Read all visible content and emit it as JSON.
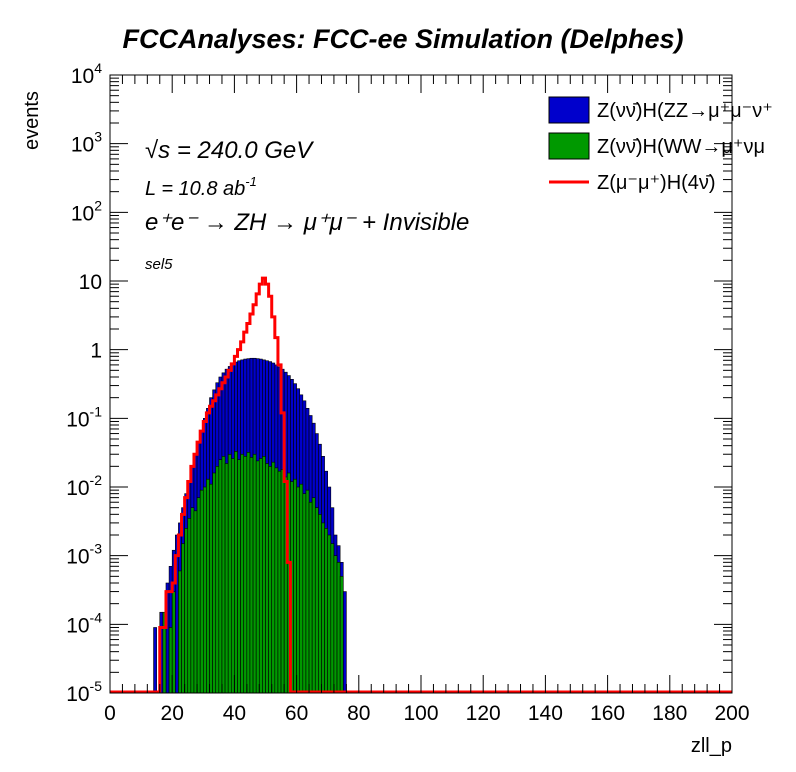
{
  "chart_data": {
    "type": "histogram",
    "title": "FCCAnalyses: FCC-ee Simulation (Delphes)",
    "xlabel": "zll_p",
    "ylabel": "events",
    "xlim": [
      0,
      200
    ],
    "ylim": [
      1e-05,
      10000
    ],
    "ylog": true,
    "x_ticks": [
      "0",
      "20",
      "40",
      "60",
      "80",
      "100",
      "120",
      "140",
      "160",
      "180",
      "200"
    ],
    "y_ticks": [
      {
        "base": "10",
        "exp": "4",
        "value": 10000
      },
      {
        "base": "10",
        "exp": "3",
        "value": 1000
      },
      {
        "base": "10",
        "exp": "2",
        "value": 100
      },
      {
        "base": "10",
        "exp": "",
        "value": 10
      },
      {
        "base": "1",
        "exp": "",
        "value": 1
      },
      {
        "base": "10",
        "exp": "-1",
        "value": 0.1
      },
      {
        "base": "10",
        "exp": "-2",
        "value": 0.01
      },
      {
        "base": "10",
        "exp": "-3",
        "value": 0.001
      },
      {
        "base": "10",
        "exp": "-4",
        "value": 0.0001
      },
      {
        "base": "10",
        "exp": "-5",
        "value": 1e-05
      }
    ],
    "annotations": {
      "energy": "√s = 240.0 GeV",
      "lumi_text": "L = 10.8 ab",
      "lumi_exp": "-1",
      "process": "e⁺e⁻ → ZH → μ⁺μ⁻ + Invisible",
      "selection": "sel5"
    },
    "legend_position": "top-right",
    "grid": false,
    "bin_width": 1,
    "series": [
      {
        "name": "Z(νν̄)H(ZZ→μ⁺μ⁻ν⁺",
        "style": "filled",
        "color": "#0000cc",
        "x_start": 14,
        "values": [
          9e-05,
          0,
          0.00015,
          9e-05,
          0.0004,
          0.0007,
          0.0012,
          0.002,
          0.003,
          0.005,
          0.008,
          0.012,
          0.02,
          0.03,
          0.045,
          0.065,
          0.1,
          0.14,
          0.2,
          0.26,
          0.33,
          0.4,
          0.46,
          0.52,
          0.57,
          0.62,
          0.66,
          0.69,
          0.71,
          0.73,
          0.74,
          0.75,
          0.75,
          0.74,
          0.73,
          0.71,
          0.69,
          0.67,
          0.64,
          0.6,
          0.56,
          0.52,
          0.47,
          0.42,
          0.37,
          0.32,
          0.27,
          0.22,
          0.18,
          0.14,
          0.11,
          0.085,
          0.06,
          0.042,
          0.028,
          0.017,
          0.01,
          0.005,
          0.002,
          0.0014,
          0.0008,
          0.0003
        ]
      },
      {
        "name": "Z(νν̄)H(WW→μ⁺νμ",
        "style": "filled",
        "color": "#009900",
        "x_start": 17,
        "values": [
          0.00015,
          0,
          9e-05,
          0.0003,
          0,
          0.0006,
          0.0015,
          0.0025,
          0.0035,
          0.005,
          0.0045,
          0.007,
          0.009,
          0.01,
          0.013,
          0.011,
          0.016,
          0.02,
          0.025,
          0.028,
          0.022,
          0.03,
          0.026,
          0.033,
          0.025,
          0.03,
          0.028,
          0.032,
          0.027,
          0.03,
          0.024,
          0.026,
          0.028,
          0.022,
          0.02,
          0.023,
          0.019,
          0.017,
          0.018,
          0.014,
          0.016,
          0.012,
          0.013,
          0.01,
          0.011,
          0.008,
          0.009,
          0.006,
          0.007,
          0.005,
          0.004,
          0.003,
          0.0025,
          0.002,
          0.0015,
          0.001,
          0.0008,
          0.0005
        ]
      },
      {
        "name": "Z(μ⁻μ⁺)H(4ν̄)",
        "style": "line",
        "color": "#ff0000",
        "x_start": 16,
        "values": [
          9e-05,
          9e-05,
          0.0003,
          0.0003,
          0.0004,
          0.001,
          0.002,
          0.004,
          0.007,
          0.012,
          0.02,
          0.03,
          0.045,
          0.065,
          0.09,
          0.12,
          0.15,
          0.18,
          0.22,
          0.27,
          0.33,
          0.4,
          0.5,
          0.62,
          0.8,
          1.0,
          1.3,
          1.8,
          2.4,
          3.3,
          4.5,
          6.5,
          9,
          11,
          9,
          6,
          3,
          1.5,
          0.6,
          0.12,
          0.012,
          0.0008
        ]
      }
    ]
  }
}
